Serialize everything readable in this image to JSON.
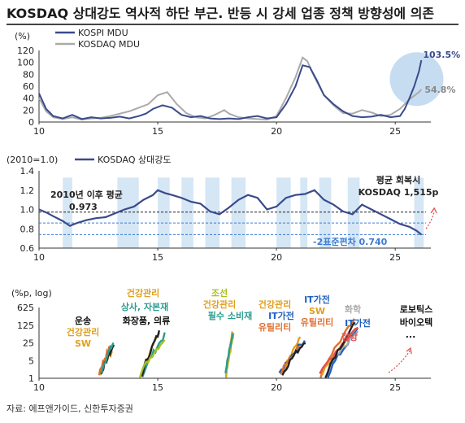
{
  "title": "KOSDAQ 상대강도 역사적 하단 부근. 반등 시 강세 업종 정책 방향성에 의존",
  "source": "자료: 에프앤가이드, 신한투자증권",
  "colors": {
    "kospi": "#3a4a8c",
    "kosdaq": "#aaaaaa",
    "band": "#d5e6f5",
    "band_circle": "#c6dcf1",
    "axis": "#333333",
    "red": "#e05050",
    "mean_line": "#222222",
    "sd_line": "#3a7bd5"
  },
  "chart_data": [
    {
      "id": "mdu",
      "type": "line",
      "ylabel": "(%)",
      "xlim": [
        10,
        26.5
      ],
      "ylim": [
        0,
        120
      ],
      "yticks": [
        "0",
        "20",
        "40",
        "60",
        "80",
        "100",
        "120"
      ],
      "xticks": [
        "10",
        "15",
        "20",
        "25"
      ],
      "series": [
        {
          "name": "KOSPI MDU",
          "color": "#3a4a8c",
          "x": [
            10.0,
            10.3,
            10.6,
            11.0,
            11.4,
            11.8,
            12.2,
            12.6,
            13.0,
            13.4,
            13.8,
            14.2,
            14.5,
            14.8,
            15.2,
            15.6,
            16.0,
            16.4,
            16.8,
            17.2,
            17.6,
            18.0,
            18.4,
            18.8,
            19.2,
            19.6,
            20.0,
            20.4,
            20.8,
            21.1,
            21.4,
            21.7,
            22.0,
            22.4,
            22.8,
            23.2,
            23.6,
            24.0,
            24.4,
            24.8,
            25.2,
            25.4,
            25.6,
            25.8,
            26.0,
            26.1
          ],
          "y": [
            48,
            22,
            10,
            6,
            12,
            5,
            8,
            6,
            7,
            9,
            6,
            10,
            14,
            22,
            28,
            24,
            12,
            8,
            10,
            6,
            5,
            6,
            5,
            8,
            10,
            6,
            8,
            30,
            60,
            95,
            92,
            70,
            45,
            30,
            18,
            10,
            8,
            9,
            12,
            8,
            10,
            22,
            40,
            60,
            85,
            103.5
          ]
        },
        {
          "name": "KOSDAQ MDU",
          "color": "#aaaaaa",
          "x": [
            10.0,
            10.3,
            10.6,
            11.0,
            11.4,
            11.8,
            12.2,
            12.6,
            13.0,
            13.4,
            13.8,
            14.2,
            14.6,
            15.0,
            15.4,
            15.8,
            16.2,
            16.6,
            17.0,
            17.4,
            17.8,
            18.0,
            18.4,
            18.8,
            19.2,
            19.6,
            20.0,
            20.4,
            20.8,
            21.1,
            21.3,
            21.6,
            22.0,
            22.4,
            22.8,
            23.2,
            23.6,
            24.0,
            24.4,
            24.8,
            25.2,
            25.6,
            26.0,
            26.1
          ],
          "y": [
            40,
            18,
            8,
            5,
            8,
            4,
            6,
            7,
            10,
            14,
            18,
            24,
            30,
            45,
            50,
            30,
            15,
            8,
            6,
            12,
            20,
            14,
            8,
            6,
            5,
            4,
            10,
            40,
            75,
            108,
            102,
            75,
            45,
            28,
            15,
            14,
            20,
            16,
            10,
            12,
            22,
            38,
            50,
            54.8
          ]
        }
      ],
      "annotations": [
        {
          "text": "103.5%",
          "series": "KOSPI MDU"
        },
        {
          "text": "54.8%",
          "series": "KOSDAQ MDU"
        }
      ]
    },
    {
      "id": "relative_strength",
      "type": "line",
      "ylabel": "(2010=1.0)",
      "xlim": [
        10,
        26.5
      ],
      "ylim": [
        0.6,
        1.4
      ],
      "yticks": [
        "0.6",
        "0.8",
        "1.0",
        "1.2",
        "1.4"
      ],
      "xticks": [
        "10",
        "15",
        "20",
        "25"
      ],
      "series": [
        {
          "name": "KOSDAQ 상대강도",
          "color": "#3a4a8c",
          "x": [
            10.0,
            10.3,
            10.6,
            11.0,
            11.3,
            11.6,
            12.0,
            12.4,
            12.8,
            13.2,
            13.6,
            14.0,
            14.4,
            14.8,
            15.0,
            15.3,
            15.6,
            16.0,
            16.4,
            16.8,
            17.2,
            17.6,
            18.0,
            18.4,
            18.8,
            19.2,
            19.6,
            20.0,
            20.4,
            20.8,
            21.2,
            21.6,
            22.0,
            22.4,
            22.8,
            23.2,
            23.6,
            24.0,
            24.4,
            24.8,
            25.2,
            25.6,
            25.9,
            26.1
          ],
          "y": [
            1.0,
            0.97,
            0.93,
            0.88,
            0.83,
            0.86,
            0.89,
            0.91,
            0.92,
            0.96,
            1.0,
            1.03,
            1.1,
            1.15,
            1.2,
            1.17,
            1.15,
            1.12,
            1.08,
            1.06,
            0.98,
            0.95,
            1.02,
            1.1,
            1.15,
            1.12,
            1.0,
            1.03,
            1.12,
            1.15,
            1.16,
            1.2,
            1.1,
            1.05,
            0.98,
            0.95,
            1.05,
            1.0,
            0.95,
            0.9,
            0.85,
            0.82,
            0.78,
            0.74
          ]
        }
      ],
      "reference_lines": [
        {
          "label": "2010년 이후 평균",
          "value": 0.973
        },
        {
          "label": "-2표준편차",
          "value": 0.74
        }
      ],
      "sd_band_lines": [
        0.86,
        0.74
      ],
      "shaded_periods": [
        [
          11.0,
          11.4
        ],
        [
          13.3,
          14.2
        ],
        [
          15.0,
          15.5
        ],
        [
          16.0,
          16.5
        ],
        [
          17.0,
          17.6
        ],
        [
          18.1,
          18.7
        ],
        [
          20.0,
          20.6
        ],
        [
          21.0,
          21.3
        ],
        [
          21.8,
          22.3
        ],
        [
          23.0,
          23.5
        ],
        [
          25.8,
          26.2
        ]
      ],
      "annotations": [
        {
          "text": "2010년 이후 평균"
        },
        {
          "text": "0.973"
        },
        {
          "text": "평균 회복시"
        },
        {
          "text": "KOSDAQ 1,515p"
        },
        {
          "text": "-2표준편차 0.740"
        }
      ]
    },
    {
      "id": "sectors",
      "type": "line",
      "ylabel": "(%p, log)",
      "xlim": [
        10,
        26.5
      ],
      "yscale": "log",
      "yticks": [
        "1",
        "5",
        "25",
        "125",
        "625"
      ],
      "xticks": [
        "10",
        "15",
        "20",
        "25"
      ],
      "labels": [
        {
          "text": "운송",
          "color": "#111111"
        },
        {
          "text": "건강관리",
          "color": "#e0a020"
        },
        {
          "text": "SW",
          "color": "#e0a020"
        },
        {
          "text": "건강관리",
          "color": "#e0a020"
        },
        {
          "text": "상사, 자본재",
          "color": "#2a9d8f"
        },
        {
          "text": "화장품, 의류",
          "color": "#111111"
        },
        {
          "text": "조선",
          "color": "#a8c020"
        },
        {
          "text": "건강관리",
          "color": "#e0a020"
        },
        {
          "text": "필수 소비재",
          "color": "#2a9d8f"
        },
        {
          "text": "건강관리",
          "color": "#e0a020"
        },
        {
          "text": "IT가전",
          "color": "#2060c0"
        },
        {
          "text": "유틸리티",
          "color": "#e07030"
        },
        {
          "text": "IT가전",
          "color": "#2060c0"
        },
        {
          "text": "SW",
          "color": "#e0a020"
        },
        {
          "text": "유틸리티",
          "color": "#e07030"
        },
        {
          "text": "화학",
          "color": "#aaaaaa"
        },
        {
          "text": "IT가전",
          "color": "#2060c0"
        },
        {
          "text": "철강",
          "color": "#e05050"
        },
        {
          "text": "로보틱스",
          "color": "#111111"
        },
        {
          "text": "바이오텍",
          "color": "#111111"
        },
        {
          "text": "...",
          "color": "#111111"
        }
      ],
      "clusters": [
        {
          "x0": 12.5,
          "x1": 13.2,
          "y0": 1.5,
          "y1": 30,
          "colors": [
            "#e0a020",
            "#222222",
            "#e07030",
            "#2a9d8f"
          ]
        },
        {
          "x0": 14.2,
          "x1": 15.3,
          "y0": 1.2,
          "y1": 90,
          "colors": [
            "#e0a020",
            "#2a9d8f",
            "#222222",
            "#a8c020"
          ]
        },
        {
          "x0": 17.8,
          "x1": 18.2,
          "y0": 1.3,
          "y1": 110,
          "colors": [
            "#a8c020",
            "#e0a020",
            "#2a9d8f"
          ]
        },
        {
          "x0": 20.1,
          "x1": 21.3,
          "y0": 1.3,
          "y1": 50,
          "colors": [
            "#e0a020",
            "#2060c0",
            "#e07030",
            "#222222"
          ]
        },
        {
          "x0": 21.8,
          "x1": 23.6,
          "y0": 1.2,
          "y1": 200,
          "colors": [
            "#e07030",
            "#2060c0",
            "#e0a020",
            "#aaaaaa",
            "#e05050",
            "#222222"
          ]
        }
      ]
    }
  ]
}
